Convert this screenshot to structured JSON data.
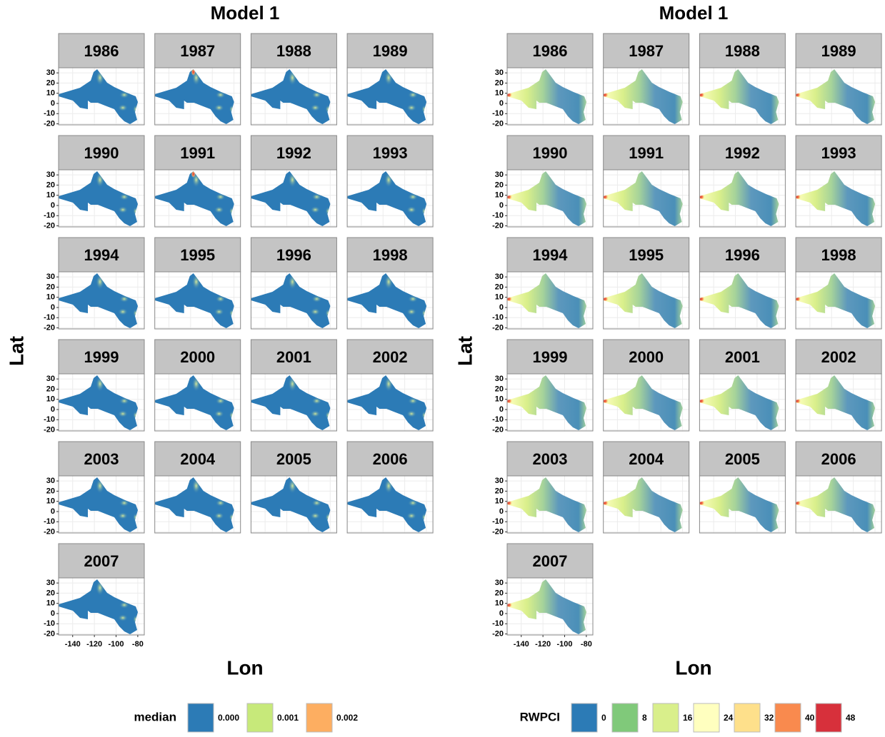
{
  "chart_data": [
    {
      "type": "map",
      "title": "Model 1",
      "x_label": "Lon",
      "y_label": "Lat",
      "facets": [
        "1986",
        "1987",
        "1988",
        "1989",
        "1990",
        "1991",
        "1992",
        "1993",
        "1994",
        "1995",
        "1996",
        "1998",
        "1999",
        "2000",
        "2001",
        "2002",
        "2003",
        "2004",
        "2005",
        "2006",
        "2007"
      ],
      "xlim": [
        -153,
        -74
      ],
      "ylim": [
        -21,
        35
      ],
      "xticks": [
        -140,
        -120,
        -100,
        -80
      ],
      "yticks": [
        -20,
        -10,
        0,
        10,
        20,
        30
      ],
      "grid": true,
      "legend": {
        "title": "median",
        "position": "bottom",
        "breaks": [
          {
            "value": 0,
            "label": "0.000"
          },
          {
            "value": 0.001,
            "label": "0.001"
          },
          {
            "value": 0.002,
            "label": "0.002"
          }
        ],
        "colors": [
          "#2c7bb6",
          "#c7e97a",
          "#fdae61"
        ]
      }
    },
    {
      "type": "map",
      "title": "Model 1",
      "x_label": "Lon",
      "y_label": "Lat",
      "facets": [
        "1986",
        "1987",
        "1988",
        "1989",
        "1990",
        "1991",
        "1992",
        "1993",
        "1994",
        "1995",
        "1996",
        "1998",
        "1999",
        "2000",
        "2001",
        "2002",
        "2003",
        "2004",
        "2005",
        "2006",
        "2007"
      ],
      "xlim": [
        -153,
        -74
      ],
      "ylim": [
        -21,
        35
      ],
      "xticks": [
        -140,
        -120,
        -100,
        -80
      ],
      "yticks": [
        -20,
        -10,
        0,
        10,
        20,
        30
      ],
      "grid": true,
      "legend": {
        "title": "RWPCI",
        "position": "bottom",
        "breaks": [
          0,
          8,
          16,
          24,
          32,
          40,
          48
        ],
        "colors": [
          "#2c7bb6",
          "#80c97a",
          "#d9ef8b",
          "#ffffbf",
          "#fee08b",
          "#f98a4e",
          "#d7303b"
        ]
      }
    }
  ]
}
